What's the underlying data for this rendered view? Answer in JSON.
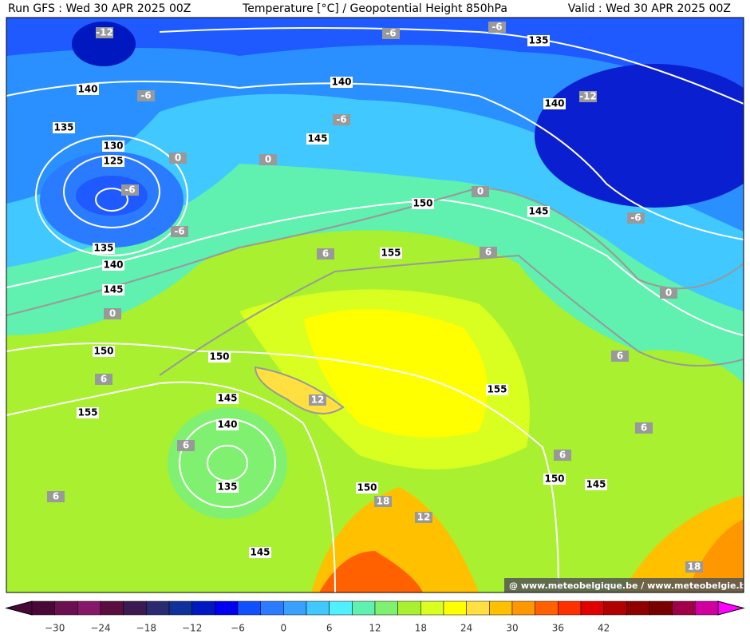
{
  "header": {
    "left": "Run GFS : Wed 30 APR 2025 00Z",
    "center": "Temperature [°C] / Geopotential Height 850hPa",
    "right": "Valid : Wed 30 APR 2025 00Z"
  },
  "height_labels": [
    "140",
    "135",
    "130",
    "125",
    "135",
    "140",
    "145",
    "140",
    "145",
    "135",
    "140",
    "150",
    "145",
    "155",
    "150",
    "150",
    "145",
    "155",
    "140",
    "135",
    "155",
    "150",
    "150",
    "145",
    "145"
  ],
  "temperature_labels": [
    "-12",
    "-6",
    "-6",
    "-6",
    "-6",
    "-12",
    "0",
    "0",
    "-6",
    "-6",
    "0",
    "-6",
    "6",
    "6",
    "0",
    "0",
    "6",
    "12",
    "6",
    "6",
    "6",
    "6",
    "6",
    "18",
    "12",
    "18"
  ],
  "colorbar": {
    "labels": [
      "−30",
      "−24",
      "−18",
      "−12",
      "−6",
      "0",
      "6",
      "12",
      "18",
      "24",
      "30",
      "36",
      "42"
    ],
    "colors": [
      "#4a0838",
      "#6a1050",
      "#86186a",
      "#5a0e40",
      "#3a1a50",
      "#2a2a70",
      "#10309a",
      "#0018c0",
      "#0000f0",
      "#1050ff",
      "#2a7bff",
      "#3aa0ff",
      "#40c8ff",
      "#50f0ff",
      "#60f0b0",
      "#80f070",
      "#a8f030",
      "#d8ff20",
      "#ffff00",
      "#ffe040",
      "#ffc000",
      "#ff9800",
      "#ff6000",
      "#ff3000",
      "#e00000",
      "#b00000",
      "#900000",
      "#780000",
      "#a0004a",
      "#d000a0"
    ]
  },
  "watermark": "@ www.meteobelgique.be / www.meteobelgie.be"
}
